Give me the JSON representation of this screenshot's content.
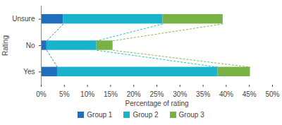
{
  "chart_data": {
    "type": "bar",
    "orientation": "horizontal",
    "stacked": true,
    "grid": false,
    "legend": "bottom",
    "x_label": "Percentage of rating",
    "y_label": "Rating",
    "categories": [
      "Unsure",
      "No",
      "Yes"
    ],
    "series": [
      {
        "name": "Group 1",
        "color": "#1f6fbd",
        "values": [
          4.8,
          1.2,
          3.5
        ]
      },
      {
        "name": "Group 2",
        "color": "#1ab3cc",
        "values": [
          21.5,
          10.8,
          34.7
        ]
      },
      {
        "name": "Group 3",
        "color": "#78b246",
        "values": [
          13.0,
          3.5,
          7.0
        ]
      }
    ],
    "xlim": [
      0,
      50
    ],
    "xticks": [
      {
        "value": 0,
        "label": "0%"
      },
      {
        "value": 5,
        "label": "5%"
      },
      {
        "value": 10,
        "label": "10%"
      },
      {
        "value": 15,
        "label": "15%"
      },
      {
        "value": 20,
        "label": "20%"
      },
      {
        "value": 25,
        "label": "25%"
      },
      {
        "value": 30,
        "label": "30%"
      },
      {
        "value": 35,
        "label": "35%"
      },
      {
        "value": 40,
        "label": "40%"
      },
      {
        "value": 45,
        "label": "45%"
      },
      {
        "value": 50,
        "label": "50%"
      }
    ]
  }
}
